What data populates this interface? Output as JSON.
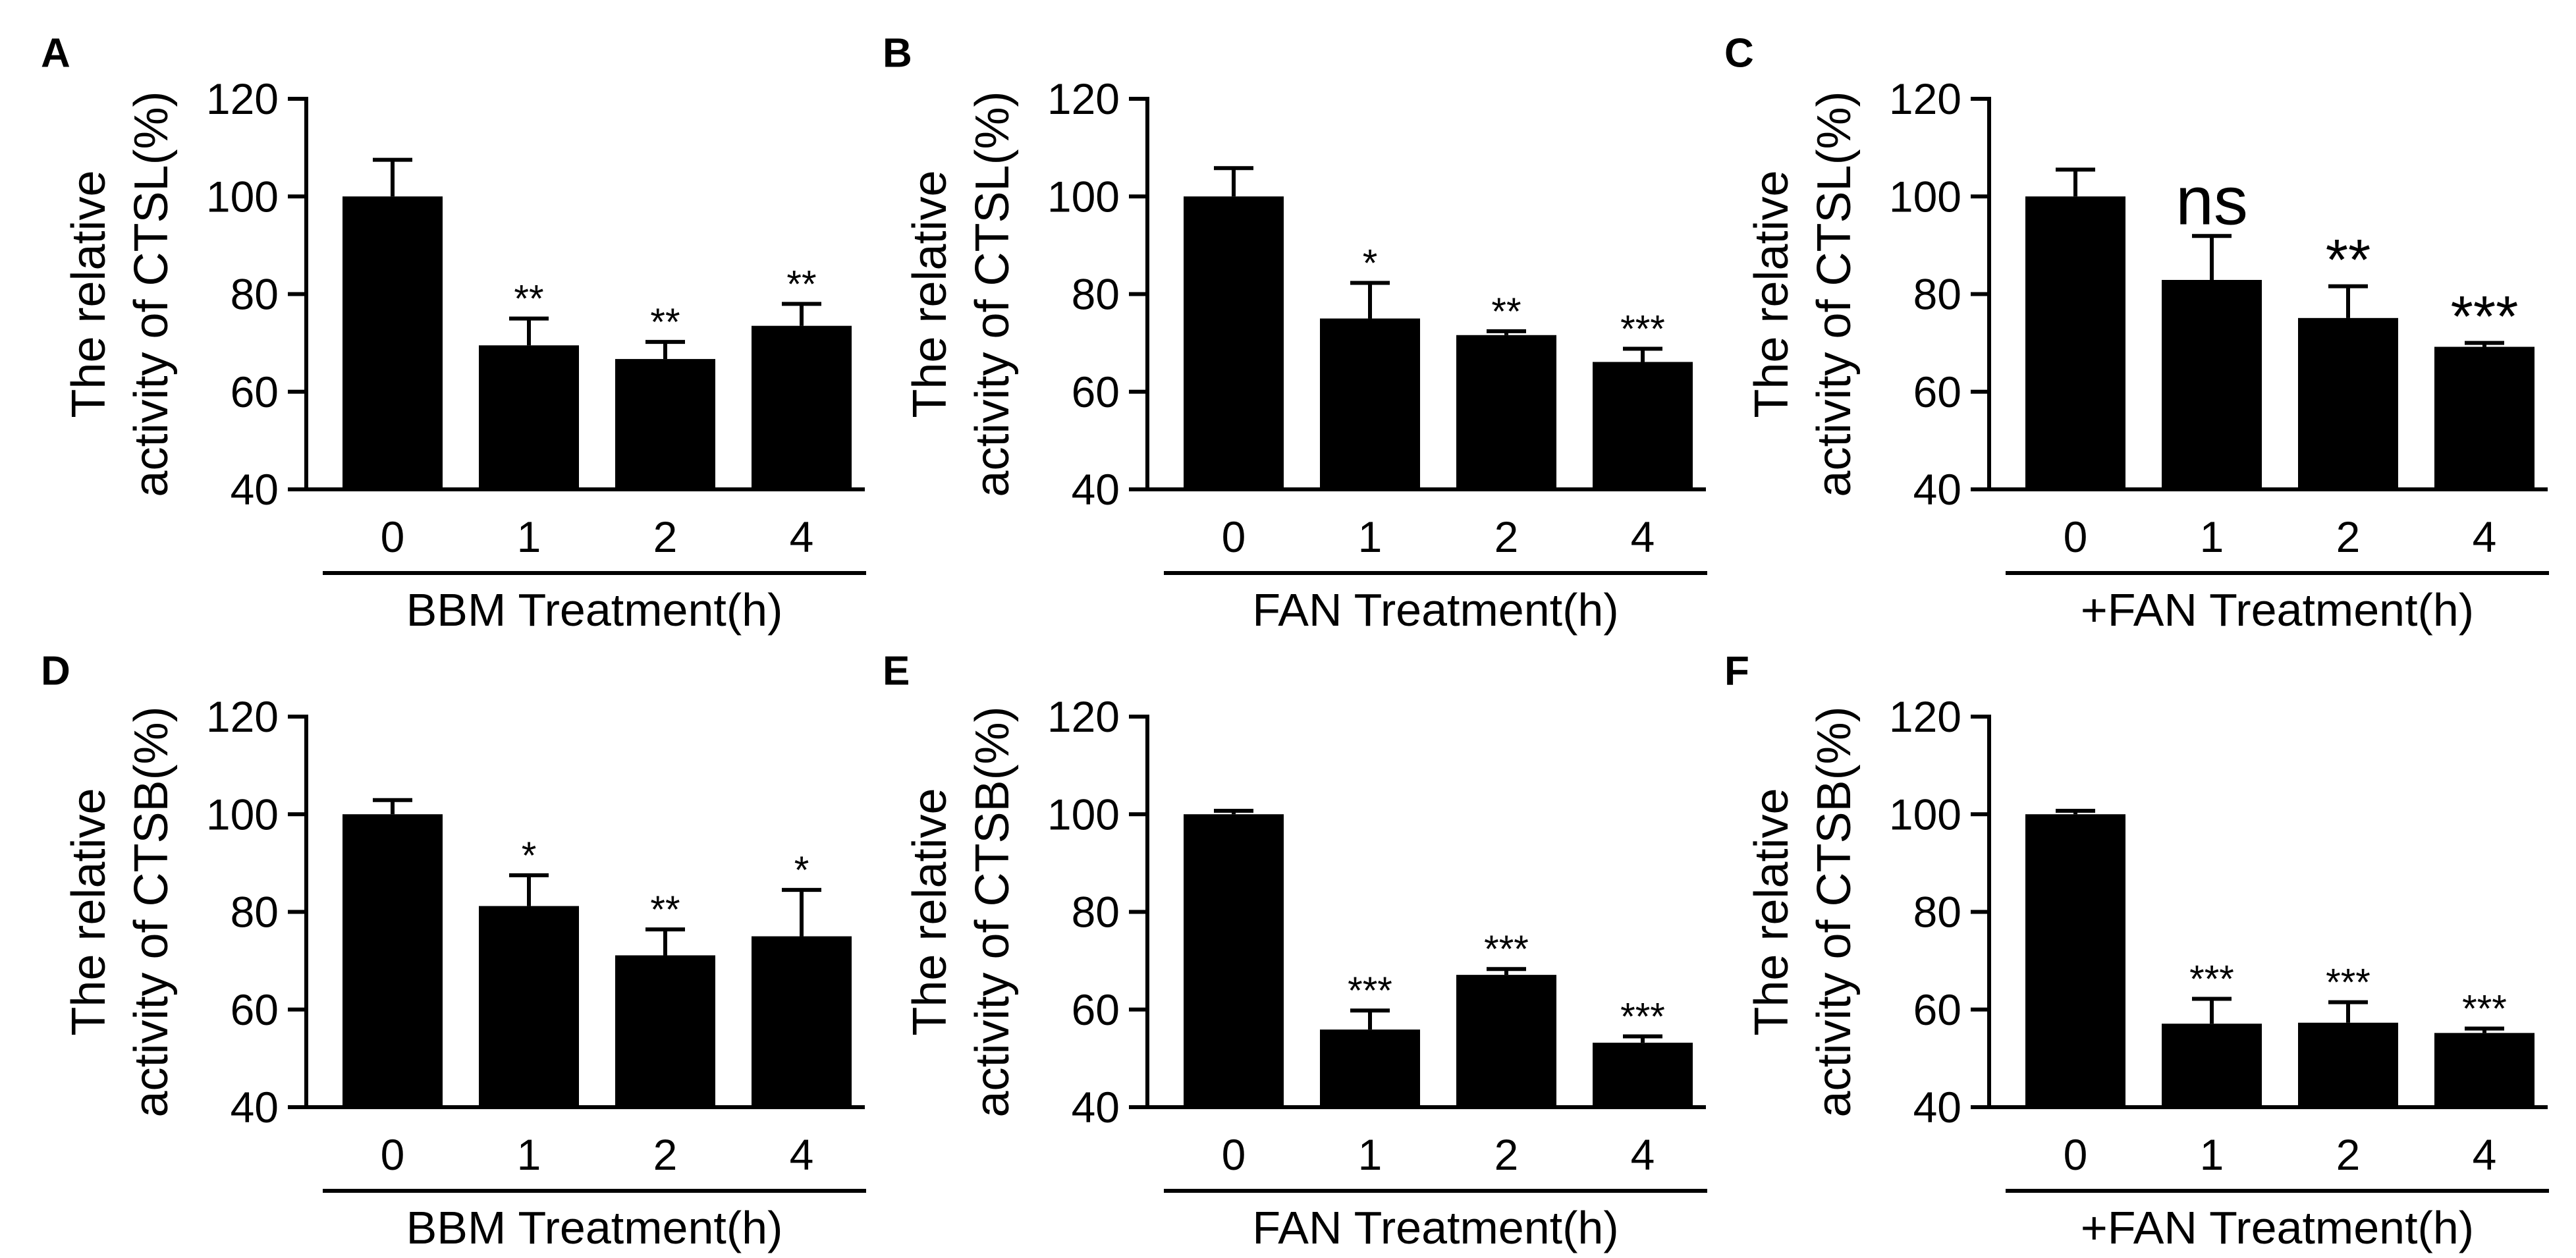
{
  "chart_data": [
    {
      "panel": "A",
      "type": "bar",
      "ylabel_lines": [
        "The relative",
        "activity of CTSL(%)"
      ],
      "xlabel": "BBM Treatment(h)",
      "categories": [
        "0",
        "1",
        "2",
        "4"
      ],
      "values": [
        100,
        69.5,
        66.7,
        73.5
      ],
      "errors": [
        7.5,
        5.5,
        3.5,
        4.5
      ],
      "annotations": [
        "",
        "**",
        "**",
        "**"
      ],
      "annotation_size": "small",
      "ylim": [
        40,
        120
      ],
      "yticks": [
        40,
        60,
        80,
        100,
        120
      ],
      "ytick_labels": [
        "40",
        "60",
        "80",
        "100",
        "120"
      ]
    },
    {
      "panel": "B",
      "type": "bar",
      "ylabel_lines": [
        "The relative",
        "activity of CTSL(%)"
      ],
      "xlabel": "FAN Treatment(h)",
      "categories": [
        "0",
        "1",
        "2",
        "4"
      ],
      "values": [
        100,
        75,
        71.6,
        66.1
      ],
      "errors": [
        5.8,
        7.3,
        0.8,
        2.7
      ],
      "annotations": [
        "",
        "*",
        "**",
        "***"
      ],
      "annotation_size": "small",
      "ylim": [
        40,
        120
      ],
      "yticks": [
        40,
        60,
        80,
        100,
        120
      ],
      "ytick_labels": [
        "40",
        "60",
        "80",
        "100",
        "120"
      ]
    },
    {
      "panel": "C",
      "type": "bar",
      "ylabel_lines": [
        "The relative",
        "activity of CTSL(%)"
      ],
      "xlabel": "+FAN Treatment(h)",
      "categories": [
        "0",
        "1",
        "2",
        "4"
      ],
      "values": [
        100,
        82.9,
        75.1,
        69.2
      ],
      "errors": [
        5.5,
        9,
        6.5,
        0.8
      ],
      "annotations": [
        "",
        "ns",
        "**",
        "***"
      ],
      "annotation_size": "large",
      "ylim": [
        40,
        120
      ],
      "yticks": [
        40,
        60,
        80,
        100,
        120
      ],
      "ytick_labels": [
        "40",
        "60",
        "80",
        "100",
        "120"
      ]
    },
    {
      "panel": "D",
      "type": "bar",
      "ylabel_lines": [
        "The relative",
        "activity of CTSB(%)"
      ],
      "xlabel": "BBM Treatment(h)",
      "categories": [
        "0",
        "1",
        "2",
        "4"
      ],
      "values": [
        100,
        81.2,
        71.1,
        75
      ],
      "errors": [
        2.9,
        6.3,
        5.3,
        9.5
      ],
      "annotations": [
        "",
        "*",
        "**",
        "*"
      ],
      "annotation_size": "small",
      "ylim": [
        40,
        120
      ],
      "yticks": [
        40,
        60,
        80,
        100,
        120
      ],
      "ytick_labels": [
        "40",
        "60",
        "80",
        "100",
        "120"
      ]
    },
    {
      "panel": "E",
      "type": "bar",
      "ylabel_lines": [
        "The relative",
        "activity of CTSB(%)"
      ],
      "xlabel": "FAN Treatment(h)",
      "categories": [
        "0",
        "1",
        "2",
        "4"
      ],
      "values": [
        100,
        55.9,
        67.1,
        53.2
      ],
      "errors": [
        0.7,
        3.9,
        1.2,
        1.3
      ],
      "annotations": [
        "",
        "***",
        "***",
        "***"
      ],
      "annotation_size": "small",
      "ylim": [
        40,
        120
      ],
      "yticks": [
        40,
        60,
        80,
        100,
        120
      ],
      "ytick_labels": [
        "40",
        "60",
        "80",
        "100",
        "120"
      ]
    },
    {
      "panel": "F",
      "type": "bar",
      "ylabel_lines": [
        "The relative",
        "activity of CTSB(%)"
      ],
      "xlabel": "+FAN Treatment(h)",
      "categories": [
        "0",
        "1",
        "2",
        "4"
      ],
      "values": [
        100,
        57.1,
        57.3,
        55.2
      ],
      "errors": [
        0.7,
        5.1,
        4.2,
        0.9
      ],
      "annotations": [
        "",
        "***",
        "***",
        "***"
      ],
      "annotation_size": "small",
      "ylim": [
        40,
        120
      ],
      "yticks": [
        40,
        60,
        80,
        100,
        120
      ],
      "ytick_labels": [
        "40",
        "60",
        "80",
        "100",
        "120"
      ]
    }
  ]
}
